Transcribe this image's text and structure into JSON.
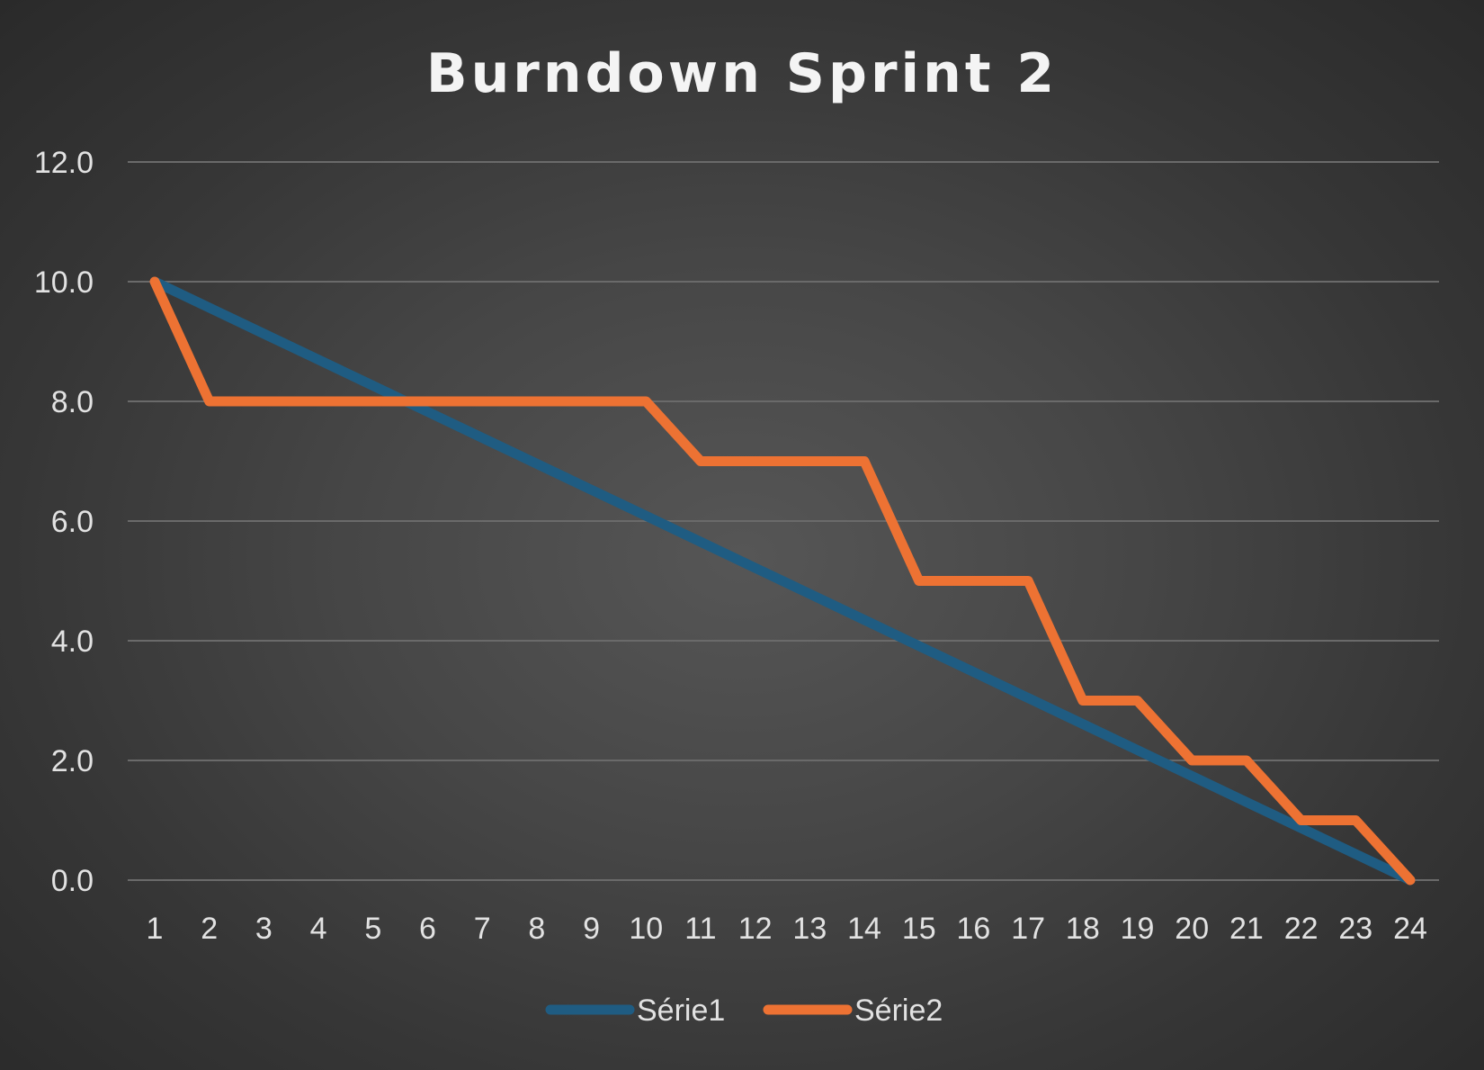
{
  "chart_data": {
    "type": "line",
    "title": "Burndown Sprint 2",
    "xlabel": "",
    "ylabel": "",
    "categories": [
      "1",
      "2",
      "3",
      "4",
      "5",
      "6",
      "7",
      "8",
      "9",
      "10",
      "11",
      "12",
      "13",
      "14",
      "15",
      "16",
      "17",
      "18",
      "19",
      "20",
      "21",
      "22",
      "23",
      "24"
    ],
    "ylim": [
      0,
      12
    ],
    "yticks": [
      "0.0",
      "2.0",
      "4.0",
      "6.0",
      "8.0",
      "10.0",
      "12.0"
    ],
    "grid": true,
    "legend_position": "bottom",
    "series": [
      {
        "name": "Série1",
        "color": "#1f5c82",
        "values": [
          10.0,
          9.565,
          9.13,
          8.696,
          8.261,
          7.826,
          7.391,
          6.957,
          6.522,
          6.087,
          5.652,
          5.217,
          4.783,
          4.348,
          3.913,
          3.478,
          3.043,
          2.609,
          2.174,
          1.739,
          1.304,
          0.87,
          0.435,
          0.0
        ]
      },
      {
        "name": "Série2",
        "color": "#ed7233",
        "values": [
          10,
          8,
          8,
          8,
          8,
          8,
          8,
          8,
          8,
          8,
          7,
          7,
          7,
          7,
          5,
          5,
          5,
          3,
          3,
          2,
          2,
          1,
          1,
          0
        ]
      }
    ]
  }
}
